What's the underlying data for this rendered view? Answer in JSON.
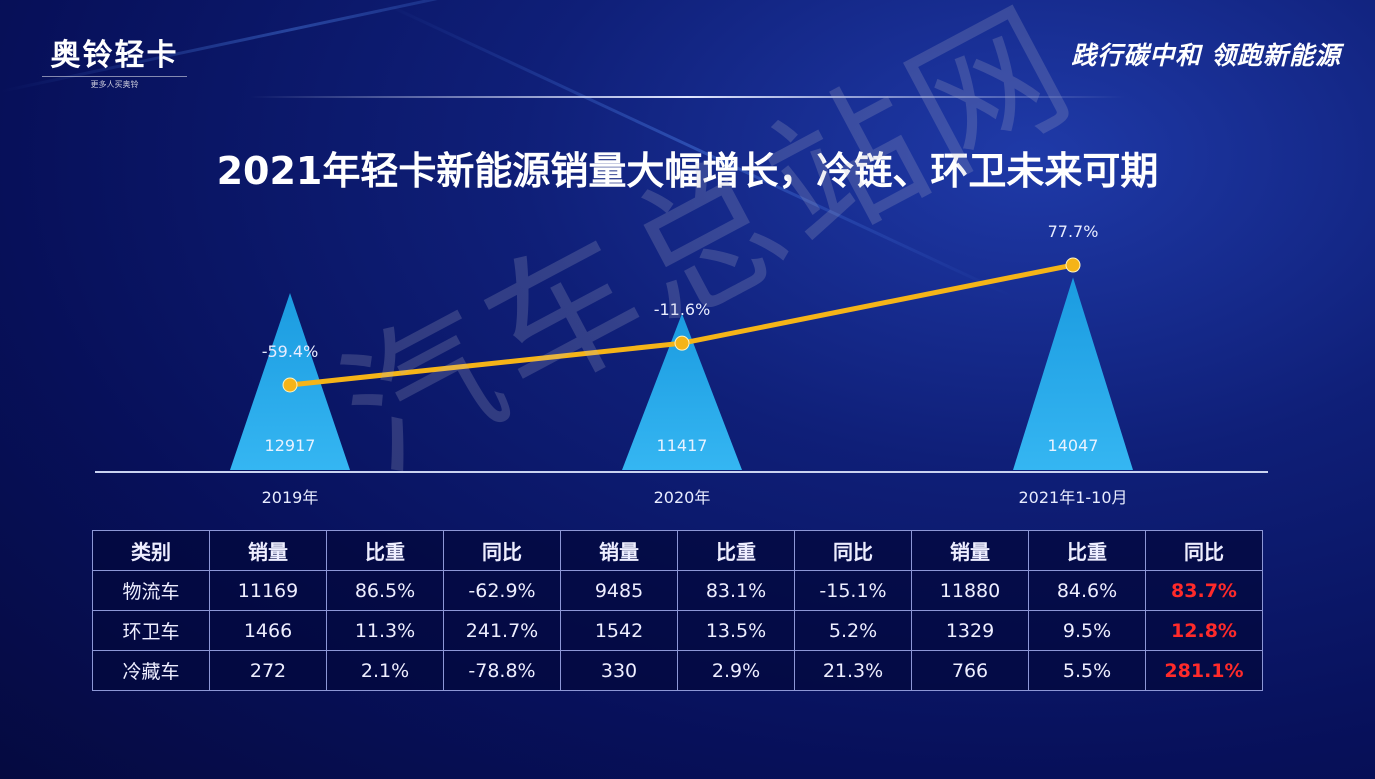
{
  "logo": {
    "name": "奥铃轻卡",
    "tagline": "更多人买奥铃"
  },
  "slogan": "践行碳中和 领跑新能源",
  "title": "2021年轻卡新能源销量大幅增长，冷链、环卫未来可期",
  "watermark": "汽车总站网",
  "colors": {
    "triangle": "#1b9be0",
    "line": "#f5b418",
    "negative_growth": "#ff2a2a"
  },
  "chart_data": {
    "type": "bar",
    "bar_shape": "triangle",
    "categories": [
      "2019年",
      "2020年",
      "2021年1-10月"
    ],
    "series": [
      {
        "name": "销量",
        "values": [
          12917,
          11417,
          14047
        ],
        "labels": [
          "12917",
          "11417",
          "14047"
        ]
      },
      {
        "name": "同比",
        "type": "line",
        "values": [
          -59.4,
          -11.6,
          77.7
        ],
        "labels": [
          "-59.4%",
          "-11.6%",
          "77.7%"
        ]
      }
    ]
  },
  "table": {
    "headers": [
      "类别",
      "销量",
      "比重",
      "同比",
      "销量",
      "比重",
      "同比",
      "销量",
      "比重",
      "同比"
    ],
    "rows": [
      [
        "物流车",
        "11169",
        "86.5%",
        "-62.9%",
        "9485",
        "83.1%",
        "-15.1%",
        "11880",
        "84.6%",
        "83.7%"
      ],
      [
        "环卫车",
        "1466",
        "11.3%",
        "241.7%",
        "1542",
        "13.5%",
        "5.2%",
        "1329",
        "9.5%",
        "12.8%"
      ],
      [
        "冷藏车",
        "272",
        "2.1%",
        "-78.8%",
        "330",
        "2.9%",
        "21.3%",
        "766",
        "5.5%",
        "281.1%"
      ]
    ]
  }
}
